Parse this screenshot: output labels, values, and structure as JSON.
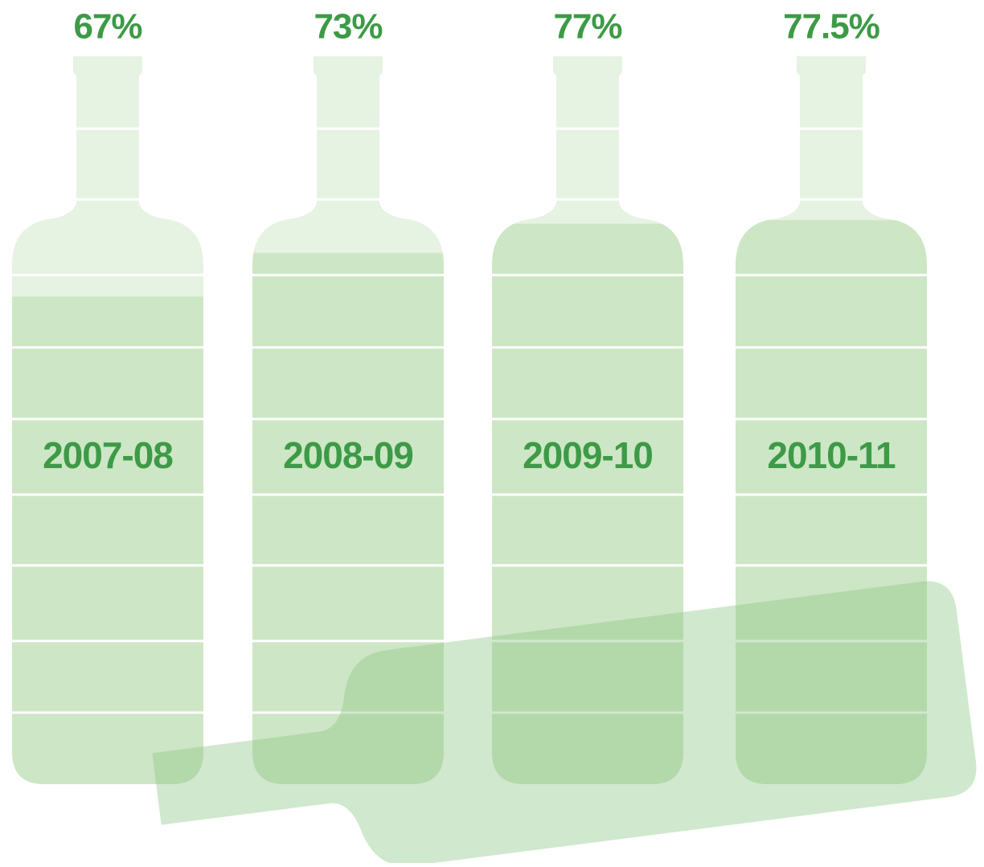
{
  "chart_data": {
    "type": "bottle",
    "categories": [
      "2007-08",
      "2008-09",
      "2009-10",
      "2010-11"
    ],
    "values": [
      67,
      73,
      77,
      77.5
    ],
    "value_labels": [
      "67%",
      "73%",
      "77%",
      "77.5%"
    ],
    "ylim": [
      0,
      100
    ],
    "color": "#cde6c5",
    "empty_color": "#e6f2e2",
    "text_color": "#3d9a47"
  }
}
